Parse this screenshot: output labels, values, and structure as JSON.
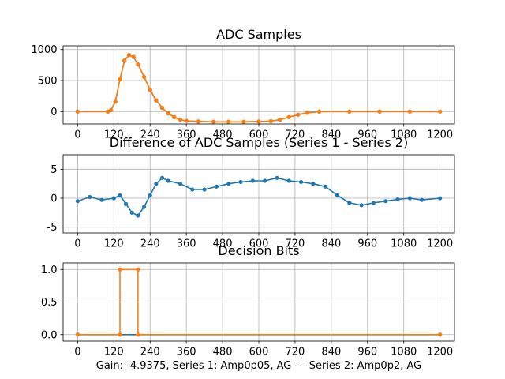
{
  "figure": {
    "caption": "Gain: -4.9375, Series 1: Amp0p05, AG --- Series 2: Amp0p2, AG"
  },
  "colors": {
    "series1": "#1f77b4",
    "series2": "#ff7f0e",
    "grid": "#b0b0b0"
  },
  "chart_data": [
    {
      "type": "line",
      "title": "ADC Samples",
      "xlim": [
        -48,
        1248
      ],
      "ylim": [
        -200,
        1060
      ],
      "xticks": [
        0,
        120,
        240,
        360,
        480,
        600,
        720,
        840,
        960,
        1080,
        1200
      ],
      "yticks": [
        0,
        500,
        1000
      ],
      "grid": true,
      "series": [
        {
          "color": "#1f77b4",
          "marker": "dot",
          "points": [
            [
              0,
              0
            ],
            [
              100,
              0
            ],
            [
              110,
              20
            ],
            [
              125,
              160
            ],
            [
              140,
              520
            ],
            [
              155,
              820
            ],
            [
              170,
              910
            ],
            [
              185,
              880
            ],
            [
              200,
              760
            ],
            [
              220,
              560
            ],
            [
              240,
              350
            ],
            [
              260,
              180
            ],
            [
              280,
              60
            ],
            [
              300,
              -30
            ],
            [
              320,
              -90
            ],
            [
              340,
              -130
            ],
            [
              360,
              -150
            ],
            [
              400,
              -160
            ],
            [
              450,
              -165
            ],
            [
              500,
              -165
            ],
            [
              550,
              -165
            ],
            [
              600,
              -160
            ],
            [
              640,
              -155
            ],
            [
              670,
              -130
            ],
            [
              700,
              -90
            ],
            [
              730,
              -50
            ],
            [
              760,
              -20
            ],
            [
              800,
              0
            ],
            [
              900,
              0
            ],
            [
              1000,
              0
            ],
            [
              1100,
              0
            ],
            [
              1200,
              0
            ]
          ]
        },
        {
          "color": "#ff7f0e",
          "marker": "dot",
          "points": [
            [
              0,
              0
            ],
            [
              100,
              0
            ],
            [
              110,
              20
            ],
            [
              125,
              160
            ],
            [
              140,
              520
            ],
            [
              155,
              820
            ],
            [
              170,
              910
            ],
            [
              185,
              880
            ],
            [
              200,
              760
            ],
            [
              220,
              560
            ],
            [
              240,
              350
            ],
            [
              260,
              180
            ],
            [
              280,
              60
            ],
            [
              300,
              -30
            ],
            [
              320,
              -90
            ],
            [
              340,
              -130
            ],
            [
              360,
              -150
            ],
            [
              400,
              -160
            ],
            [
              450,
              -165
            ],
            [
              500,
              -165
            ],
            [
              550,
              -165
            ],
            [
              600,
              -160
            ],
            [
              640,
              -155
            ],
            [
              670,
              -130
            ],
            [
              700,
              -90
            ],
            [
              730,
              -50
            ],
            [
              760,
              -20
            ],
            [
              800,
              0
            ],
            [
              900,
              0
            ],
            [
              1000,
              0
            ],
            [
              1100,
              0
            ],
            [
              1200,
              0
            ]
          ]
        }
      ]
    },
    {
      "type": "line",
      "title": "Difference of ADC Samples (Series 1 - Series 2)",
      "xlim": [
        -48,
        1248
      ],
      "ylim": [
        -6,
        7.5
      ],
      "xticks": [
        0,
        120,
        240,
        360,
        480,
        600,
        720,
        840,
        960,
        1080,
        1200
      ],
      "yticks": [
        -5,
        0,
        5
      ],
      "grid": true,
      "series": [
        {
          "color": "#1f77b4",
          "marker": "dot",
          "points": [
            [
              0,
              -0.5
            ],
            [
              40,
              0.2
            ],
            [
              80,
              -0.3
            ],
            [
              120,
              0
            ],
            [
              140,
              0.5
            ],
            [
              160,
              -1
            ],
            [
              180,
              -2.5
            ],
            [
              200,
              -3
            ],
            [
              220,
              -1.5
            ],
            [
              240,
              0.5
            ],
            [
              260,
              2.5
            ],
            [
              280,
              3.5
            ],
            [
              300,
              3
            ],
            [
              340,
              2.5
            ],
            [
              380,
              1.5
            ],
            [
              420,
              1.5
            ],
            [
              460,
              2
            ],
            [
              500,
              2.5
            ],
            [
              540,
              2.8
            ],
            [
              580,
              3
            ],
            [
              620,
              3
            ],
            [
              660,
              3.5
            ],
            [
              700,
              3
            ],
            [
              740,
              2.8
            ],
            [
              780,
              2.5
            ],
            [
              820,
              2
            ],
            [
              860,
              0.5
            ],
            [
              900,
              -0.8
            ],
            [
              940,
              -1.2
            ],
            [
              980,
              -0.8
            ],
            [
              1020,
              -0.5
            ],
            [
              1060,
              -0.2
            ],
            [
              1100,
              0
            ],
            [
              1140,
              -0.3
            ],
            [
              1200,
              0
            ]
          ]
        }
      ]
    },
    {
      "type": "line",
      "title": "Decision Bits",
      "xlim": [
        -48,
        1248
      ],
      "ylim": [
        -0.1,
        1.1
      ],
      "xticks": [
        0,
        120,
        240,
        360,
        480,
        600,
        720,
        840,
        960,
        1080,
        1200
      ],
      "yticks": [
        0.0,
        0.5,
        1.0
      ],
      "grid": true,
      "series": [
        {
          "color": "#1f77b4",
          "marker": "dot",
          "points": [
            [
              0,
              0
            ],
            [
              1200,
              0
            ]
          ]
        },
        {
          "color": "#ff7f0e",
          "marker": "dot",
          "points": [
            [
              0,
              0
            ],
            [
              140,
              0
            ],
            [
              140,
              1
            ],
            [
              200,
              1
            ],
            [
              200,
              0
            ],
            [
              1200,
              0
            ]
          ]
        }
      ]
    }
  ]
}
